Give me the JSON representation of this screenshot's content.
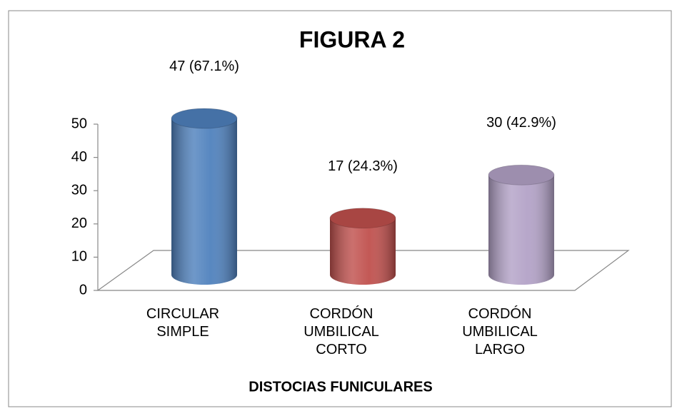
{
  "chart_data": {
    "type": "bar",
    "title": "FIGURA 2",
    "x_label": "DISTOCIAS FUNICULARES",
    "categories": [
      "CIRCULAR SIMPLE",
      "CORDÓN UMBILICAL CORTO",
      "CORDÓN UMBILICAL LARGO"
    ],
    "values": [
      47,
      17,
      30
    ],
    "value_labels": [
      "47 (67.1%)",
      "17 (24.3%)",
      "30 (42.9%)"
    ],
    "colors": [
      "#4f81bd",
      "#c0504d",
      "#b3a2c7"
    ],
    "ylim": [
      0,
      50
    ],
    "yticks": [
      0,
      10,
      20,
      30,
      40,
      50
    ]
  }
}
